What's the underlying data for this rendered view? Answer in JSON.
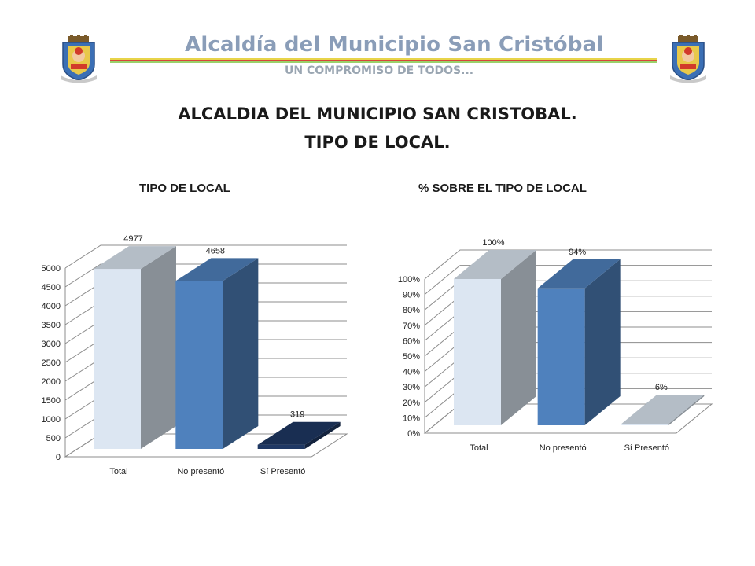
{
  "header": {
    "title": "Alcaldía del Municipio San Cristóbal",
    "subtitle": "UN COMPROMISO DE TODOS..."
  },
  "page": {
    "title_line1": "ALCALDIA DEL MUNICIPIO SAN CRISTOBAL.",
    "title_line2": "TIPO DE LOCAL."
  },
  "colors": {
    "total_bar": "#dce6f2",
    "no_presento_bar": "#4f81bd",
    "si_presento_bar": "#1f3864",
    "grid": "#8c8c8c"
  },
  "chart_data": [
    {
      "type": "bar",
      "title": "TIPO DE LOCAL",
      "categories": [
        "Total",
        "No presentó",
        "Sí Presentó"
      ],
      "values": [
        4977,
        4658,
        319
      ],
      "data_labels": [
        "4977",
        "4658",
        "319"
      ],
      "ylim": [
        0,
        5000
      ],
      "yticks": [
        0,
        500,
        1000,
        1500,
        2000,
        2500,
        3000,
        3500,
        4000,
        4500,
        5000
      ],
      "ytick_labels": [
        "0",
        "500",
        "1000",
        "1500",
        "2000",
        "2500",
        "3000",
        "3500",
        "4000",
        "4500",
        "5000"
      ],
      "bar_colors": [
        "#dce6f2",
        "#4f81bd",
        "#1f3864"
      ],
      "grid": true,
      "three_d": true
    },
    {
      "type": "bar",
      "title": "% SOBRE EL TIPO DE LOCAL",
      "categories": [
        "Total",
        "No presentó",
        "Sí Presentó"
      ],
      "values": [
        100,
        94,
        6
      ],
      "data_labels": [
        "100%",
        "94%",
        "6%"
      ],
      "ylim": [
        0,
        100
      ],
      "yticks": [
        0,
        10,
        20,
        30,
        40,
        50,
        60,
        70,
        80,
        90,
        100
      ],
      "ytick_labels": [
        "0%",
        "10%",
        "20%",
        "30%",
        "40%",
        "50%",
        "60%",
        "70%",
        "80%",
        "90%",
        "100%"
      ],
      "bar_colors": [
        "#dce6f2",
        "#4f81bd",
        "#dce6f2"
      ],
      "grid": true,
      "three_d": true
    }
  ]
}
